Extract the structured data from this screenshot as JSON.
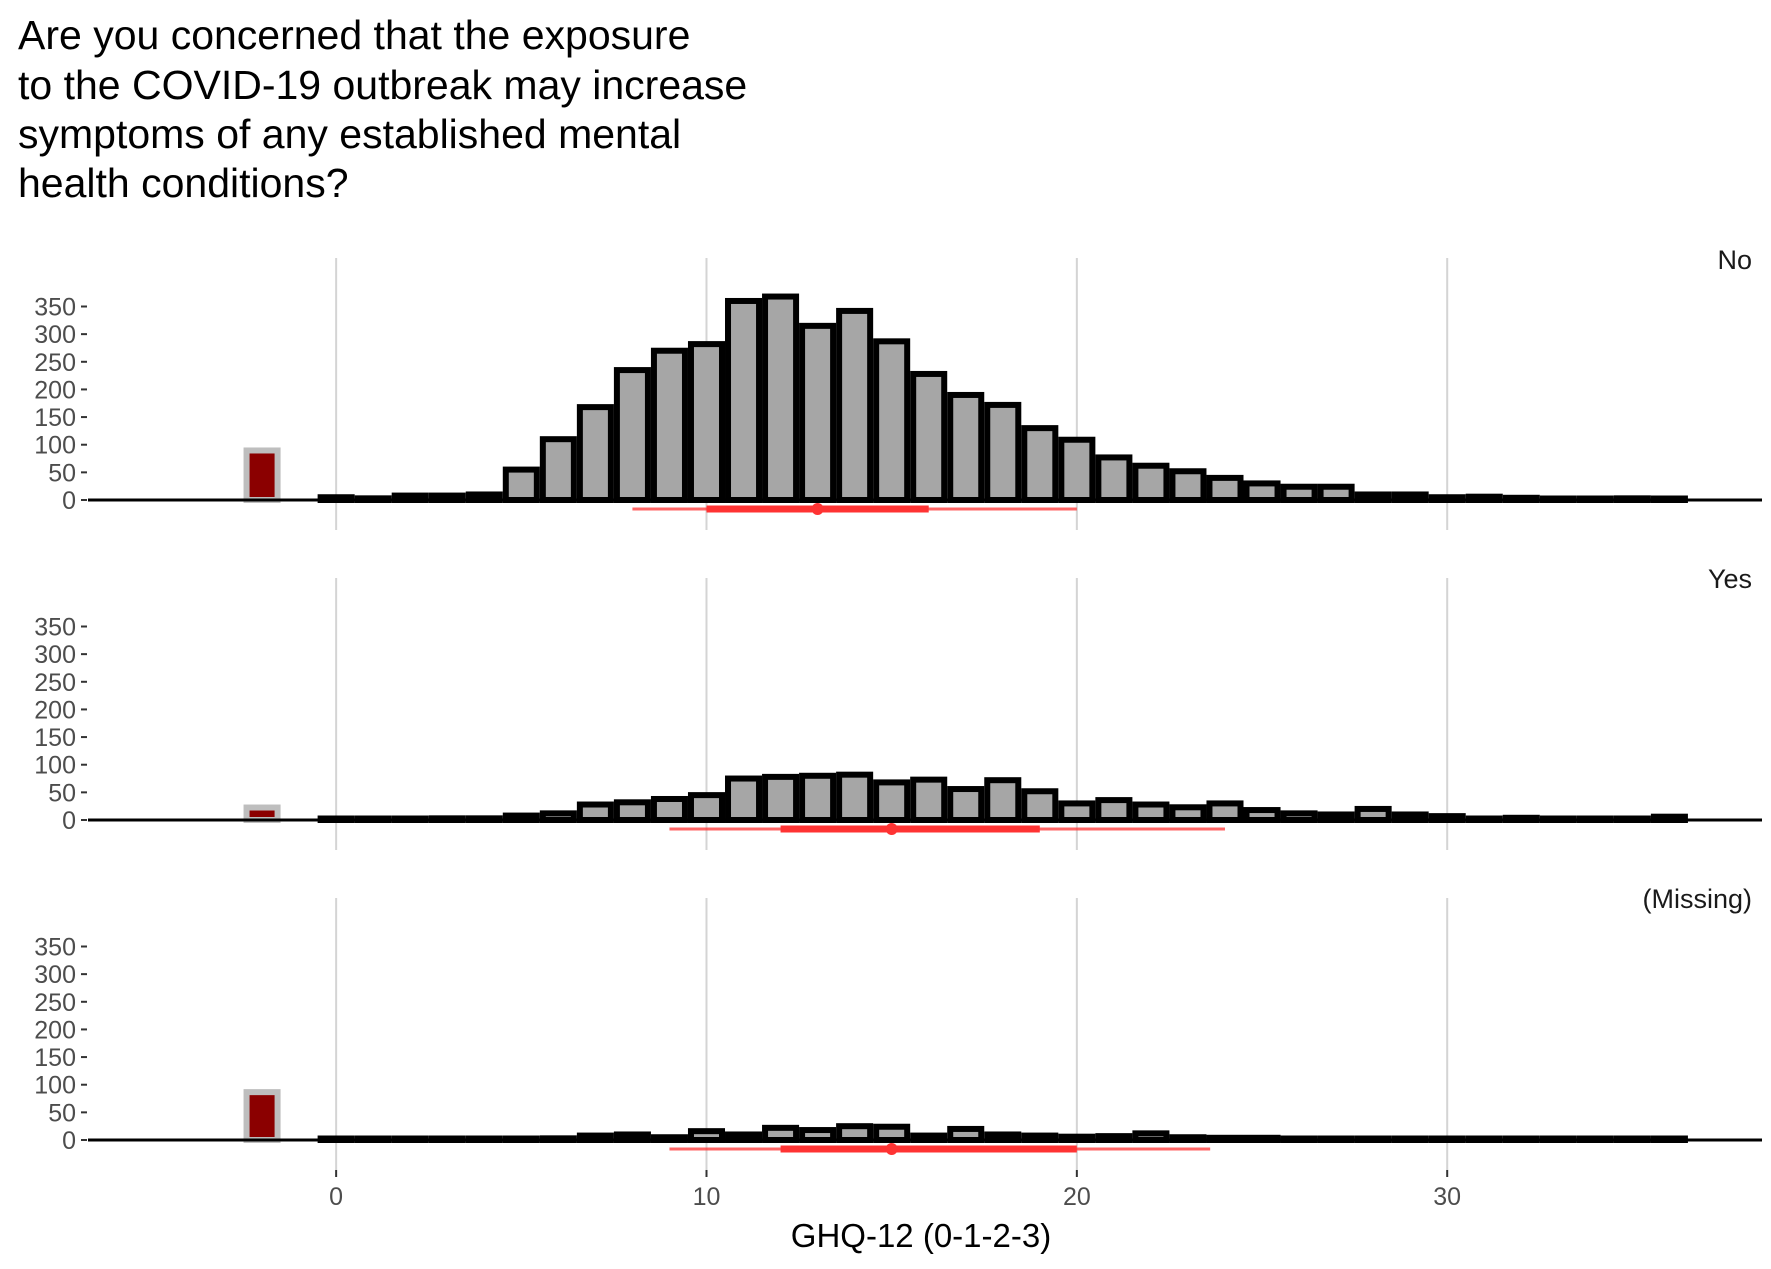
{
  "chart_data": {
    "type": "bar",
    "title_lines": [
      "Are you concerned that the exposure",
      "to the COVID-19 outbreak may increase",
      "symptoms of any established mental",
      "health conditions?"
    ],
    "xlabel": "GHQ-12 (0-1-2-3)",
    "ylabel": "",
    "xlim": [
      -6.7,
      38.5
    ],
    "ylim": [
      0,
      350
    ],
    "x_ticks": [
      0,
      10,
      20,
      30
    ],
    "x_tick_labels": [
      "0",
      "10",
      "20",
      "30"
    ],
    "y_ticks": [
      0,
      50,
      100,
      150,
      200,
      250,
      300,
      350
    ],
    "y_tick_labels": [
      "0",
      "50",
      "100",
      "150",
      "200",
      "250",
      "300",
      "350"
    ],
    "grid": "vertical major",
    "bin_width": 1,
    "bins_x": [
      0,
      1,
      2,
      3,
      4,
      5,
      6,
      7,
      8,
      9,
      10,
      11,
      12,
      13,
      14,
      15,
      16,
      17,
      18,
      19,
      20,
      21,
      22,
      23,
      24,
      25,
      26,
      27,
      28,
      29,
      30,
      31,
      32,
      33,
      34,
      35,
      36
    ],
    "missing_bar_x": -2,
    "colors": {
      "bar_fill": "#a6a6a6",
      "bar_outline": "#000000",
      "missing_fill": "#8b0000",
      "missing_outline": "#bebebe",
      "summary": "#ff3333",
      "grid": "#d4d4d4",
      "axis": "#000000"
    },
    "panels": [
      {
        "label": "No",
        "missing": 95,
        "values": [
          5,
          3,
          8,
          8,
          10,
          55,
          110,
          168,
          235,
          270,
          282,
          360,
          368,
          315,
          342,
          287,
          228,
          190,
          172,
          130,
          109,
          77,
          62,
          52,
          40,
          30,
          24,
          24,
          10,
          10,
          5,
          6,
          4,
          2,
          2,
          3,
          2
        ],
        "summary": {
          "median": 13,
          "iqr": [
            10,
            16
          ],
          "range": [
            8,
            20
          ]
        }
      },
      {
        "label": "Yes",
        "missing": 28,
        "values": [
          2,
          2,
          2,
          3,
          3,
          8,
          12,
          28,
          32,
          38,
          45,
          75,
          78,
          80,
          82,
          68,
          73,
          56,
          72,
          52,
          30,
          36,
          28,
          23,
          30,
          18,
          12,
          10,
          20,
          10,
          7,
          2,
          4,
          2,
          2,
          2,
          6
        ],
        "summary": {
          "median": 15,
          "iqr": [
            12,
            19
          ],
          "range": [
            9,
            24
          ]
        }
      },
      {
        "label": "(Missing)",
        "missing": 92,
        "values": [
          0,
          0,
          0,
          0,
          0,
          2,
          3,
          8,
          10,
          5,
          16,
          10,
          22,
          18,
          25,
          24,
          8,
          20,
          10,
          8,
          6,
          7,
          12,
          5,
          4,
          4,
          2,
          1,
          2,
          1,
          1,
          1,
          1,
          1,
          1,
          1,
          1
        ],
        "summary": {
          "median": 15,
          "iqr": [
            12,
            20
          ],
          "range": [
            9,
            23.6
          ]
        }
      }
    ]
  }
}
